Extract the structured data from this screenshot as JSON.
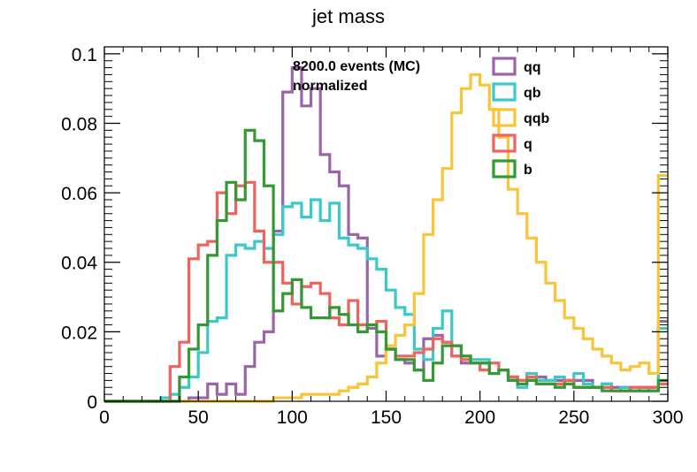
{
  "chart_data": {
    "type": "histogram",
    "title": "jet mass",
    "xlabel": "",
    "ylabel": "",
    "xlim": [
      0,
      300
    ],
    "ylim": [
      0,
      0.102
    ],
    "x_ticks": [
      0,
      50,
      100,
      150,
      200,
      250,
      300
    ],
    "y_ticks": [
      0,
      0.02,
      0.04,
      0.06,
      0.08,
      0.1
    ],
    "x_tick_labels": [
      "0",
      "50",
      "100",
      "150",
      "200",
      "250",
      "300"
    ],
    "y_tick_labels": [
      "0",
      "0.02",
      "0.04",
      "0.06",
      "0.08",
      "0.1"
    ],
    "bin_edges_start": 0,
    "bin_width": 5,
    "annotation": [
      "8200.0 events (MC)",
      "normalized"
    ],
    "legend_position": "top-right",
    "grid": false,
    "series": [
      {
        "name": "qq",
        "color": "#9a65a6",
        "values": [
          0,
          0,
          0,
          0,
          0,
          0,
          0,
          0,
          0,
          0.001,
          0.001,
          0.005,
          0.002,
          0.005,
          0.002,
          0.01,
          0.017,
          0.02,
          0.049,
          0.089,
          0.096,
          0.085,
          0.09,
          0.071,
          0.066,
          0.062,
          0.048,
          0.047,
          0.021,
          0.013,
          0.015,
          0.012,
          0.011,
          0.009,
          0.018,
          0.019,
          0.017,
          0.013,
          0.011,
          0.011,
          0.011,
          0.008,
          0.009,
          0.007,
          0.006,
          0.006,
          0.007,
          0.006,
          0.006,
          0.006,
          0.006,
          0.006,
          0.004,
          0.005,
          0.004,
          0.004,
          0.003,
          0.003,
          0.004,
          0.023
        ]
      },
      {
        "name": "qb",
        "color": "#3ac8c8",
        "values": [
          0,
          0,
          0,
          0,
          0,
          0,
          0.001,
          0.002,
          0.004,
          0.007,
          0.014,
          0.023,
          0.024,
          0.042,
          0.045,
          0.044,
          0.046,
          0.044,
          0.048,
          0.056,
          0.057,
          0.053,
          0.058,
          0.052,
          0.057,
          0.047,
          0.045,
          0.044,
          0.041,
          0.038,
          0.032,
          0.027,
          0.025,
          0.015,
          0.012,
          0.021,
          0.026,
          0.016,
          0.013,
          0.012,
          0.012,
          0.008,
          0.009,
          0.006,
          0.004,
          0.008,
          0.006,
          0.006,
          0.007,
          0.005,
          0.008,
          0.005,
          0.004,
          0.005,
          0.003,
          0.004,
          0.003,
          0.004,
          0.003,
          0.021
        ]
      },
      {
        "name": "qqb",
        "color": "#f7c537",
        "values": [
          0,
          0,
          0,
          0,
          0,
          0,
          0,
          0,
          0,
          0,
          0,
          0,
          0,
          0,
          0,
          0,
          0,
          0,
          0.001,
          0.001,
          0.001,
          0.002,
          0.002,
          0.002,
          0.002,
          0.003,
          0.004,
          0.005,
          0.007,
          0.011,
          0.016,
          0.019,
          0.022,
          0.031,
          0.048,
          0.058,
          0.067,
          0.083,
          0.09,
          0.094,
          0.091,
          0.084,
          0.076,
          0.061,
          0.054,
          0.047,
          0.04,
          0.034,
          0.029,
          0.024,
          0.021,
          0.018,
          0.015,
          0.013,
          0.011,
          0.009,
          0.01,
          0.011,
          0.008,
          0.065
        ]
      },
      {
        "name": "q",
        "color": "#f0625e",
        "values": [
          0,
          0,
          0,
          0,
          0,
          0,
          0,
          0.01,
          0.017,
          0.041,
          0.045,
          0.046,
          0.06,
          0.054,
          0.062,
          0.063,
          0.049,
          0.04,
          0.04,
          0.034,
          0.028,
          0.033,
          0.034,
          0.031,
          0.024,
          0.022,
          0.029,
          0.022,
          0.022,
          0.023,
          0.015,
          0.013,
          0.013,
          0.014,
          0.015,
          0.018,
          0.017,
          0.013,
          0.012,
          0.011,
          0.009,
          0.011,
          0.009,
          0.007,
          0.006,
          0.007,
          0.005,
          0.005,
          0.005,
          0.006,
          0.004,
          0.004,
          0.004,
          0.004,
          0.003,
          0.003,
          0.004,
          0.004,
          0.004,
          0.005
        ]
      },
      {
        "name": "b",
        "color": "#339933",
        "values": [
          0,
          0,
          0,
          0,
          0,
          0,
          0,
          0,
          0.007,
          0.015,
          0.022,
          0.042,
          0.052,
          0.063,
          0.058,
          0.078,
          0.075,
          0.062,
          0.026,
          0.031,
          0.035,
          0.027,
          0.024,
          0.024,
          0.027,
          0.025,
          0.022,
          0.02,
          0.022,
          0.02,
          0.015,
          0.012,
          0.012,
          0.009,
          0.006,
          0.011,
          0.016,
          0.016,
          0.013,
          0.011,
          0.011,
          0.008,
          0.009,
          0.006,
          0.005,
          0.006,
          0.005,
          0.005,
          0.004,
          0.005,
          0.004,
          0.004,
          0.004,
          0.003,
          0.003,
          0.003,
          0.003,
          0.003,
          0.003,
          0.006
        ]
      }
    ]
  }
}
